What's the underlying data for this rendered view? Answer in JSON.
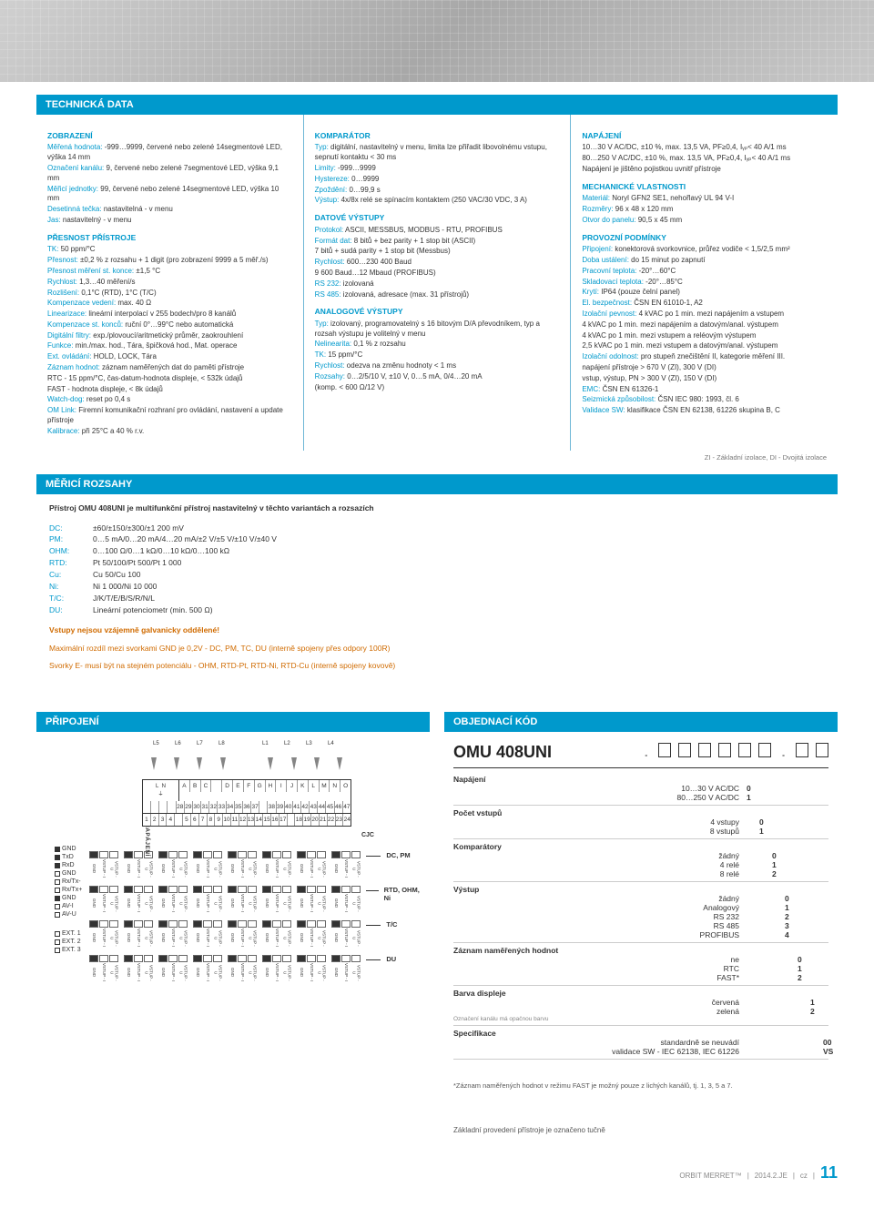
{
  "colors": {
    "accent": "#0099cc",
    "warn": "#d06b00",
    "text": "#333333",
    "border_light": "#cccccc"
  },
  "sections": {
    "tech": "TECHNICKÁ DATA",
    "ranges": "MĚŘICÍ ROZSAHY",
    "conn": "PŘIPOJENÍ",
    "order": "OBJEDNACÍ KÓD"
  },
  "col1": {
    "h1": "ZOBRAZENÍ",
    "p1a": "Měřená hodnota:",
    "p1b": " -999…9999, červené nebo zelené 14segmentové LED, výška 14 mm",
    "p2a": "Označení kanálu:",
    "p2b": " 9, červené nebo zelené 7segmentové LED, výška 9,1 mm",
    "p3a": "Měřicí jednotky:",
    "p3b": " 99, červené nebo zelené 14segmentové LED, výška 10 mm",
    "p4a": "Desetinná tečka:",
    "p4b": " nastavitelná - v menu",
    "p5a": "Jas:",
    "p5b": " nastavitelný - v menu",
    "h2": "PŘESNOST PŘÍSTROJE",
    "p6a": "TK:",
    "p6b": " 50 ppm/°C",
    "p7a": "Přesnost:",
    "p7b": " ±0,2 % z rozsahu + 1 digit (pro zobrazení 9999 a 5 měř./s)",
    "p8a": "Přesnost měření st. konce:",
    "p8b": " ±1,5 °C",
    "p9a": "Rychlost:",
    "p9b": " 1,3…40 měření/s",
    "p10a": "Rozlišení:",
    "p10b": " 0,1°C (RTD), 1°C (T/C)",
    "p11a": "Kompenzace vedení:",
    "p11b": " max. 40 Ω",
    "p12a": "Linearizace:",
    "p12b": " lineární interpolací v 255 bodech/pro 8 kanálů",
    "p13a": "Kompenzace st. konců:",
    "p13b": " ruční 0°…99°C nebo automatická",
    "p14a": "Digitální filtry:",
    "p14b": " exp./plovoucí/aritmetický průměr, zaokrouhlení",
    "p15a": "Funkce:",
    "p15b": " min./max. hod., Tára, špičková hod., Mat. operace",
    "p16a": "Ext. ovládání:",
    "p16b": " HOLD, LOCK, Tára",
    "p17a": "Záznam hodnot:",
    "p17b": " záznam naměřených dat do paměti přístroje",
    "p18": "RTC - 15 ppm/°C, čas-datum-hodnota displeje, < 532k údajů",
    "p19": "FAST - hodnota displeje, < 8k údajů",
    "p20a": "Watch-dog:",
    "p20b": " reset po 0,4 s",
    "p21a": "OM Link:",
    "p21b": " Firemní komunikační rozhraní pro ovládání, nastavení a update přístroje",
    "p22a": "Kalibrace:",
    "p22b": " při 25°C a 40 % r.v."
  },
  "col2": {
    "h1": "KOMPARÁTOR",
    "p1a": "Typ:",
    "p1b": " digitální, nastavitelný v menu, limita lze přiřadit libovolnému vstupu, sepnutí kontaktu < 30 ms",
    "p2a": "Limity:",
    "p2b": " -999…9999",
    "p3a": "Hystereze:",
    "p3b": " 0…9999",
    "p4a": "Zpoždění:",
    "p4b": " 0…99,9 s",
    "p5a": "Výstup:",
    "p5b": " 4x/8x relé se spínacím kontaktem (250 VAC/30 VDC, 3 A)",
    "h2": "DATOVÉ VÝSTUPY",
    "p6a": "Protokol:",
    "p6b": " ASCII, MESSBUS, MODBUS - RTU, PROFIBUS",
    "p7a": "Formát dat:",
    "p7b": " 8 bitů + bez parity + 1 stop bit (ASCII)",
    "p7c": "7 bitů + sudá parity + 1 stop bit (Messbus)",
    "p8a": "Rychlost:",
    "p8b": " 600…230 400 Baud",
    "p8c": "9 600 Baud…12 Mbaud (PROFIBUS)",
    "p9a": "RS 232:",
    "p9b": " izolovaná",
    "p10a": "RS 485:",
    "p10b": " izolovaná, adresace (max. 31 přístrojů)",
    "h3": "ANALOGOVÉ VÝSTUPY",
    "p11a": "Typ:",
    "p11b": " izolovaný, programovatelný s 16 bitovým D/A převodníkem, typ a rozsah výstupu je volitelný v menu",
    "p12a": "Nelinearita:",
    "p12b": " 0,1 % z rozsahu",
    "p13a": "TK:",
    "p13b": " 15 ppm/°C",
    "p14a": "Rychlost:",
    "p14b": " odezva na změnu hodnoty < 1 ms",
    "p15a": "Rozsahy:",
    "p15b": " 0…2/5/10 V, ±10 V, 0…5 mA, 0/4…20 mA",
    "p15c": "(komp. < 600 Ω/12 V)"
  },
  "col3": {
    "h1": "NAPÁJENÍ",
    "p1": "10…30 V AC/DC, ±10 %, max. 13,5 VA, PF≥0,4, Iᵧₚ< 40 A/1 ms",
    "p2": "80…250 V AC/DC, ±10 %, max. 13,5 VA, PF≥0,4, Iᵧₚ< 40 A/1 ms",
    "p3": "Napájení je jištěno pojistkou uvnitř přístroje",
    "h2": "MECHANICKÉ VLASTNOSTI",
    "p4a": "Materiál:",
    "p4b": " Noryl GFN2 SE1, nehořlavý UL 94 V-I",
    "p5a": "Rozměry:",
    "p5b": " 96 x 48 x 120 mm",
    "p6a": "Otvor do panelu:",
    "p6b": " 90,5 x 45 mm",
    "h3": "PROVOZNÍ PODMÍNKY",
    "p7a": "Připojení:",
    "p7b": " konektorová svorkovnice, průřez vodiče < 1,5/2,5 mm²",
    "p8a": "Doba ustálení:",
    "p8b": " do 15 minut po zapnutí",
    "p9a": "Pracovní teplota:",
    "p9b": " -20°…60°C",
    "p10a": "Skladovací teplota:",
    "p10b": " -20°…85°C",
    "p11a": "Krytí:",
    "p11b": " IP64 (pouze čelní panel)",
    "p12a": "El. bezpečnost:",
    "p12b": " ČSN EN 61010-1, A2",
    "p13a": "Izolační pevnost:",
    "p13b": " 4 kVAC po 1 min. mezi napájením a vstupem",
    "p13c": "4 kVAC po 1 min. mezi napájením a datovým/anal. výstupem",
    "p13d": "4 kVAC po 1 min. mezi vstupem a reléovým výstupem",
    "p13e": "2,5 kVAC po 1 min. mezi vstupem a datovým/anal. výstupem",
    "p14a": "Izolační odolnost:",
    "p14b": " pro stupeň znečištění II, kategorie měření III.",
    "p14c": "napájení přístroje > 670 V (ZI), 300 V (DI)",
    "p14d": "vstup, výstup, PN > 300 V (ZI), 150 V (DI)",
    "p15a": "EMC:",
    "p15b": " ČSN EN 61326-1",
    "p16a": "Seizmická způsobilost:",
    "p16b": " ČSN IEC 980: 1993, čl. 6",
    "p17a": "Validace SW:",
    "p17b": " klasifikace ČSN EN 62138, 61226 skupina B, C"
  },
  "footnote": "ZI - Základní izolace, DI - Dvojitá izolace",
  "ranges": {
    "title": "Přístroj OMU 408UNI je multifunkční přístroj nastavitelný v těchto variantách a rozsazích",
    "rows": [
      {
        "k": "DC:",
        "v": "±60/±150/±300/±1 200 mV"
      },
      {
        "k": "PM:",
        "v": "0…5 mA/0…20 mA/4…20 mA/±2 V/±5 V/±10 V/±40 V"
      },
      {
        "k": "OHM:",
        "v": "0…100 Ω/0…1 kΩ/0…10 kΩ/0…100 kΩ"
      },
      {
        "k": "RTD:",
        "v": "Pt 50/100/Pt 500/Pt 1 000"
      },
      {
        "k": "Cu:",
        "v": "Cu 50/Cu 100"
      },
      {
        "k": "Ni:",
        "v": "Ni 1 000/Ni 10 000"
      },
      {
        "k": "T/C:",
        "v": "J/K/T/E/B/S/R/N/L"
      },
      {
        "k": "DU:",
        "v": "Lineární potenciometr (min. 500 Ω)"
      }
    ],
    "warn1": "Vstupy nejsou vzájemně galvanicky oddělené!",
    "warn2": "Maximální rozdíl mezi svorkami GND je 0,2V - DC, PM, TC, DU (interně spojeny přes odpory 100R)",
    "warn3": "Svorky E- musí být na stejném potenciálu - OHM, RTD-Pt, RTD-Ni, RTD-Cu (interně spojeny kovově)"
  },
  "conn": {
    "arrows_label": "NAPÁJENÍ",
    "top_letters": [
      "L5",
      "L6",
      "L7",
      "L8",
      "",
      "L1",
      "L2",
      "L3",
      "L4"
    ],
    "row_letters": [
      "A",
      "B",
      "C",
      "",
      "D",
      "E",
      "F",
      "G",
      "H",
      "I",
      "J",
      "K",
      "L",
      "M",
      "N",
      "O"
    ],
    "row_nums_a": [
      "",
      "",
      "",
      "",
      "28",
      "29",
      "30",
      "31",
      "32",
      "33",
      "34",
      "35",
      "36",
      "37",
      "",
      "38",
      "39",
      "40",
      "41",
      "42",
      "43",
      "44",
      "45",
      "46",
      "47"
    ],
    "row_nums_b": [
      "1",
      "2",
      "3",
      "4",
      "",
      "5",
      "6",
      "7",
      "8",
      "9",
      "10",
      "11",
      "12",
      "13",
      "14",
      "15",
      "16",
      "17",
      "",
      "18",
      "19",
      "20",
      "21",
      "22",
      "23",
      "24"
    ],
    "side_top": [
      {
        "sq": "f",
        "t": "GND"
      },
      {
        "sq": "f",
        "t": "TxD"
      },
      {
        "sq": "f",
        "t": "RxD"
      },
      {
        "sq": "",
        "t": "GND"
      },
      {
        "sq": "",
        "t": "Rx/Tx-"
      },
      {
        "sq": "",
        "t": "Rx/Tx+"
      },
      {
        "sq": "f",
        "t": "GND"
      },
      {
        "sq": "",
        "t": "AV-I"
      },
      {
        "sq": "",
        "t": "AV-U"
      }
    ],
    "ext_labels": [
      "EXT. 1",
      "EXT. 2",
      "EXT. 3"
    ],
    "conn_labels": [
      "DC, PM",
      "RTD, OHM, Ni",
      "T/C",
      "DU",
      "CJC"
    ],
    "term_cols": [
      "GND",
      "VSTUP - I",
      "VSTUP - U"
    ]
  },
  "order": {
    "model": "OMU 408UNI",
    "rows": [
      {
        "name": "Napájení",
        "step": 0,
        "subs": [
          {
            "l": "10…30 V AC/DC",
            "n": "0"
          },
          {
            "l": "80…250 V AC/DC",
            "n": "1"
          }
        ]
      },
      {
        "name": "Počet vstupů",
        "step": 1,
        "subs": [
          {
            "l": "4 vstupy",
            "n": "0"
          },
          {
            "l": "8 vstupů",
            "n": "1"
          }
        ]
      },
      {
        "name": "Komparátory",
        "step": 2,
        "subs": [
          {
            "l": "žádný",
            "n": "0"
          },
          {
            "l": "4 relé",
            "n": "1"
          },
          {
            "l": "8 relé",
            "n": "2"
          }
        ]
      },
      {
        "name": "Výstup",
        "step": 3,
        "subs": [
          {
            "l": "žádný",
            "n": "0"
          },
          {
            "l": "Analogový",
            "n": "1"
          },
          {
            "l": "RS 232",
            "n": "2"
          },
          {
            "l": "RS 485",
            "n": "3"
          },
          {
            "l": "PROFIBUS",
            "n": "4"
          }
        ]
      },
      {
        "name": "Záznam naměřených hodnot",
        "step": 4,
        "subs": [
          {
            "l": "ne",
            "n": "0"
          },
          {
            "l": "RTC",
            "n": "1"
          },
          {
            "l": "FAST*",
            "n": "2"
          }
        ]
      },
      {
        "name": "Barva displeje",
        "step": 5,
        "note": "Označení kanálu má opačnou barvu",
        "subs": [
          {
            "l": "červená",
            "n": "1"
          },
          {
            "l": "zelená",
            "n": "2"
          }
        ]
      },
      {
        "name": "Specifikace",
        "step": 6,
        "subs": [
          {
            "l": "standardně se neuvádí",
            "n": "00"
          },
          {
            "l": "validace SW - IEC 62138, IEC 61226",
            "n": "VS"
          }
        ]
      }
    ],
    "footnote": "*Záznam naměřených hodnot v režimu FAST je možný pouze z lichých kanálů,  tj. 1, 3, 5 a 7.",
    "bottom": "Základní provedení přístroje je označeno tučně"
  },
  "footer": {
    "brand": "ORBIT MERRET™",
    "ver": "2014.2.JE",
    "lang": "cz",
    "page": "11"
  }
}
